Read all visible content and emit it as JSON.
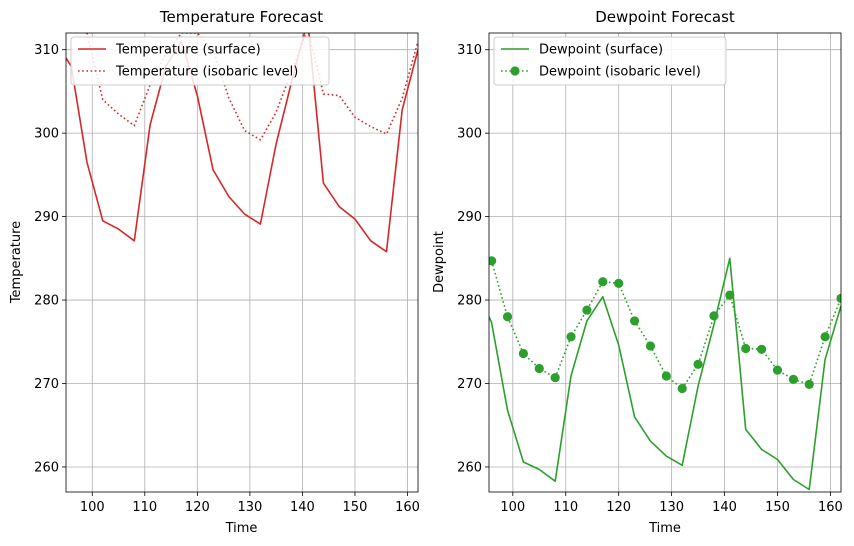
{
  "chart_data": [
    {
      "type": "line",
      "title": "Temperature Forecast",
      "xlabel": "Time",
      "ylabel": "Temperature",
      "xlim": [
        95,
        162
      ],
      "ylim": [
        257,
        312
      ],
      "xticks": [
        100,
        110,
        120,
        130,
        140,
        150,
        160
      ],
      "yticks": [
        260,
        270,
        280,
        290,
        300,
        310
      ],
      "grid": true,
      "legend": "upper-left",
      "series": [
        {
          "name": "Temperature (surface)",
          "color": "#d62728",
          "style": "solid",
          "marker": "none",
          "x": [
            95,
            96,
            99,
            102,
            105,
            108,
            111,
            114,
            117,
            120,
            123,
            126,
            129,
            132,
            135,
            138,
            141,
            144,
            147,
            150,
            153,
            156,
            159,
            162
          ],
          "y": [
            309,
            308,
            296.5,
            289.5,
            288.5,
            287.1,
            301,
            308,
            311,
            304.5,
            295.6,
            292.4,
            290.3,
            289.1,
            298.7,
            306.3,
            313.5,
            294,
            291.2,
            289.7,
            287.1,
            285.8,
            302.8,
            310
          ]
        },
        {
          "name": "Temperature (isobaric level)",
          "color": "#d62728",
          "style": "dotted",
          "marker": "none",
          "x": [
            96,
            99,
            102,
            105,
            108,
            111,
            114,
            117,
            120,
            123,
            126,
            129,
            132,
            135,
            138,
            141,
            144,
            147,
            150,
            153,
            156,
            159,
            162
          ],
          "y": [
            315,
            312,
            304,
            302.3,
            300.9,
            305.8,
            309.5,
            312,
            312,
            310,
            304.2,
            300.3,
            299.2,
            302.5,
            307.5,
            312.5,
            304.7,
            304.5,
            301.9,
            300.8,
            299.9,
            304.2,
            311
          ]
        }
      ]
    },
    {
      "type": "line",
      "title": "Dewpoint Forecast",
      "xlabel": "Time",
      "ylabel": "Dewpoint",
      "xlim": [
        95.5,
        162
      ],
      "ylim": [
        257,
        312
      ],
      "xticks": [
        100,
        110,
        120,
        130,
        140,
        150,
        160
      ],
      "yticks": [
        260,
        270,
        280,
        290,
        300,
        310
      ],
      "grid": true,
      "legend": "upper-left",
      "series": [
        {
          "name": "Dewpoint (surface)",
          "color": "#2ca02c",
          "style": "solid",
          "marker": "none",
          "x": [
            95.5,
            96,
            99,
            102,
            105,
            108,
            111,
            114,
            117,
            120,
            123,
            126,
            129,
            132,
            135,
            138,
            141,
            144,
            147,
            150,
            153,
            156,
            159,
            162
          ],
          "y": [
            278,
            277.3,
            266.8,
            260.6,
            259.7,
            258.3,
            270.9,
            277.5,
            280.4,
            274.6,
            266,
            263.1,
            261.3,
            260.2,
            269.7,
            277.1,
            285,
            264.5,
            262.1,
            260.9,
            258.5,
            257.3,
            272.9,
            279.3
          ]
        },
        {
          "name": "Dewpoint (isobaric level)",
          "color": "#2ca02c",
          "style": "dotted",
          "marker": "circle",
          "x": [
            96,
            99,
            102,
            105,
            108,
            111,
            114,
            117,
            120,
            123,
            126,
            129,
            132,
            135,
            138,
            141,
            144,
            147,
            150,
            153,
            156,
            159,
            162
          ],
          "y": [
            284.7,
            278,
            273.6,
            271.8,
            270.7,
            275.6,
            278.8,
            282.2,
            282,
            277.5,
            274.5,
            270.9,
            269.4,
            272.3,
            278.1,
            280.6,
            274.2,
            274.1,
            271.6,
            270.5,
            269.9,
            275.6,
            280.2
          ]
        }
      ]
    }
  ]
}
